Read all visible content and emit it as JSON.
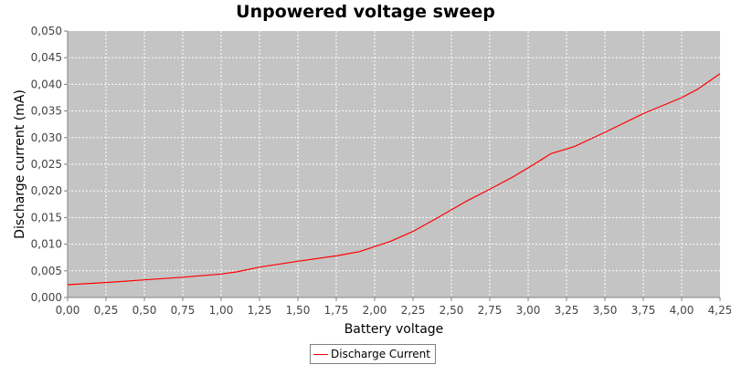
{
  "chart_data": {
    "type": "line",
    "title": "Unpowered voltage sweep",
    "xlabel": "Battery voltage",
    "ylabel": "Discharge current (mA)",
    "xlim": [
      0,
      4.25
    ],
    "ylim": [
      0,
      0.05
    ],
    "x_ticks": [
      "0,00",
      "0,25",
      "0,50",
      "0,75",
      "1,00",
      "1,25",
      "1,50",
      "1,75",
      "2,00",
      "2,25",
      "2,50",
      "2,75",
      "3,00",
      "3,25",
      "3,50",
      "3,75",
      "4,00",
      "4,25"
    ],
    "y_ticks": [
      "0,000",
      "0,005",
      "0,010",
      "0,015",
      "0,020",
      "0,025",
      "0,030",
      "0,035",
      "0,040",
      "0,045",
      "0,050"
    ],
    "grid": true,
    "legend_position": "bottom",
    "plot_background": "#c4c4c4",
    "series": [
      {
        "name": "Discharge Current",
        "color": "#ff0000",
        "x": [
          0.0,
          0.25,
          0.5,
          0.75,
          1.0,
          1.1,
          1.25,
          1.5,
          1.75,
          1.9,
          2.1,
          2.25,
          2.4,
          2.6,
          2.75,
          2.9,
          3.05,
          3.15,
          3.3,
          3.5,
          3.75,
          4.0,
          4.1,
          4.25
        ],
        "y": [
          0.0024,
          0.0028,
          0.0033,
          0.0038,
          0.0044,
          0.0048,
          0.0057,
          0.0068,
          0.0078,
          0.0086,
          0.0105,
          0.0124,
          0.0148,
          0.0181,
          0.0203,
          0.0226,
          0.0252,
          0.027,
          0.0283,
          0.031,
          0.0345,
          0.0375,
          0.039,
          0.042
        ]
      }
    ]
  }
}
